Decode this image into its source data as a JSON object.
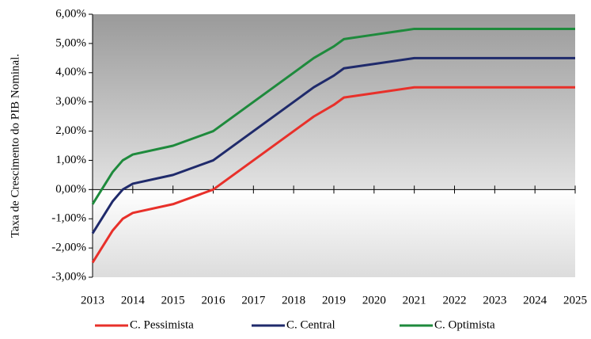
{
  "chart_data": {
    "type": "line",
    "y_label": "Taxa de Crescimento do PIB Nominal.",
    "x": [
      2013,
      2013.5,
      2013.75,
      2014,
      2015,
      2016,
      2017,
      2018,
      2018.5,
      2019,
      2019.25,
      2020,
      2021,
      2022,
      2023,
      2024,
      2025
    ],
    "series": [
      {
        "name": "C. Pessimista",
        "color": "#e8302a",
        "values": [
          -2.5,
          -1.4,
          -1.0,
          -0.8,
          -0.5,
          0,
          1,
          2,
          2.5,
          2.9,
          3.15,
          3.3,
          3.5,
          3.5,
          3.5,
          3.5,
          3.5
        ]
      },
      {
        "name": "C. Central",
        "color": "#1f2a6b",
        "values": [
          -1.5,
          -0.4,
          0,
          0.2,
          0.5,
          1,
          2,
          3,
          3.5,
          3.9,
          4.15,
          4.3,
          4.5,
          4.5,
          4.5,
          4.5,
          4.5
        ]
      },
      {
        "name": "C. Optimista",
        "color": "#1e8a3c",
        "values": [
          -0.5,
          0.6,
          1.0,
          1.2,
          1.5,
          2,
          3,
          4,
          4.5,
          4.9,
          5.15,
          5.3,
          5.5,
          5.5,
          5.5,
          5.5,
          5.5
        ]
      }
    ],
    "xlim": [
      2013,
      2025
    ],
    "xticks": [
      2013,
      2014,
      2015,
      2016,
      2017,
      2018,
      2019,
      2020,
      2021,
      2022,
      2023,
      2024,
      2025
    ],
    "ylim": [
      -3,
      6
    ],
    "yticks": [
      {
        "value": -3,
        "label": "-3,00%"
      },
      {
        "value": -2,
        "label": "-2,00%"
      },
      {
        "value": -1,
        "label": "-1,00%"
      },
      {
        "value": 0,
        "label": "0,00%"
      },
      {
        "value": 1,
        "label": "1,00%"
      },
      {
        "value": 2,
        "label": "2,00%"
      },
      {
        "value": 3,
        "label": "3,00%"
      },
      {
        "value": 4,
        "label": "4,00%"
      },
      {
        "value": 5,
        "label": "5,00%"
      },
      {
        "value": 6,
        "label": "6,00%"
      }
    ],
    "legend": "bottom"
  }
}
